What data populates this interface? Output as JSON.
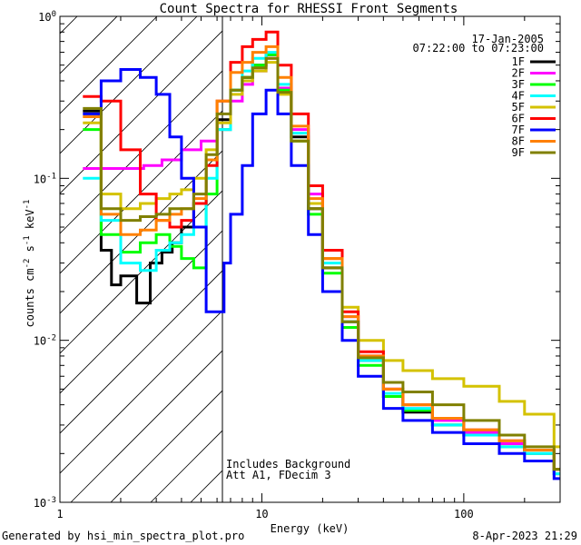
{
  "chart_data": {
    "type": "line",
    "title": "Count Spectra for RHESSI Front Segments",
    "date": "17-Jan-2005",
    "time_range": "07:22:00 to 07:23:00",
    "xlabel": "Energy (keV)",
    "ylabel_main": "counts cm",
    "ylabel_exp1": "-2",
    "ylabel_mid": " s",
    "ylabel_exp2": "-1",
    "ylabel_end": " keV",
    "ylabel_exp3": "-1",
    "x_scale": "log",
    "y_scale": "log",
    "xlim": [
      1.0,
      300
    ],
    "ylim": [
      0.001,
      1.0
    ],
    "x_ticks": [
      {
        "v": 1,
        "label": "1"
      },
      {
        "v": 10,
        "label": "10"
      },
      {
        "v": 100,
        "label": "100"
      }
    ],
    "y_ticks": [
      {
        "v": 1,
        "base": "10",
        "exp": "0"
      },
      {
        "v": 0.1,
        "base": "10",
        "exp": "-1"
      },
      {
        "v": 0.01,
        "base": "10",
        "exp": "-2"
      },
      {
        "v": 0.001,
        "base": "10",
        "exp": "-3"
      }
    ],
    "attenuator_cutoff_kev": 6,
    "annotation_line1": "Includes Background",
    "annotation_line2": "Att A1, FDecim 3",
    "footer_left": "Generated by hsi_min_spectra_plot.pro",
    "footer_right": "8-Apr-2023 21:29",
    "series": [
      {
        "name": "1F",
        "color": "#000000",
        "points": [
          [
            1.3,
            0.26
          ],
          [
            1.6,
            0.036
          ],
          [
            1.8,
            0.022
          ],
          [
            2.0,
            0.025
          ],
          [
            2.4,
            0.017
          ],
          [
            2.8,
            0.03
          ],
          [
            3.2,
            0.035
          ],
          [
            3.6,
            0.04
          ],
          [
            4.0,
            0.05
          ],
          [
            4.6,
            0.07
          ],
          [
            5.3,
            0.13
          ],
          [
            6.0,
            0.23
          ],
          [
            7.0,
            0.35
          ],
          [
            8.0,
            0.42
          ],
          [
            9.0,
            0.5
          ],
          [
            10.5,
            0.58
          ],
          [
            12.0,
            0.36
          ],
          [
            14.0,
            0.18
          ],
          [
            17.0,
            0.065
          ],
          [
            20.0,
            0.028
          ],
          [
            25.0,
            0.013
          ],
          [
            30.0,
            0.0075
          ],
          [
            40.0,
            0.0045
          ],
          [
            50.0,
            0.0036
          ],
          [
            70.0,
            0.003
          ],
          [
            100.0,
            0.0026
          ],
          [
            150.0,
            0.0023
          ],
          [
            200.0,
            0.0021
          ],
          [
            280.0,
            0.0016
          ]
        ]
      },
      {
        "name": "2F",
        "color": "#ff00ff",
        "points": [
          [
            1.3,
            0.115
          ],
          [
            2.0,
            0.115
          ],
          [
            2.6,
            0.12
          ],
          [
            3.2,
            0.13
          ],
          [
            4.0,
            0.15
          ],
          [
            5.0,
            0.17
          ],
          [
            6.0,
            0.2
          ],
          [
            7.0,
            0.3
          ],
          [
            8.0,
            0.38
          ],
          [
            9.0,
            0.46
          ],
          [
            10.5,
            0.55
          ],
          [
            12.0,
            0.36
          ],
          [
            14.0,
            0.2
          ],
          [
            17.0,
            0.08
          ],
          [
            20.0,
            0.032
          ],
          [
            25.0,
            0.014
          ],
          [
            30.0,
            0.008
          ],
          [
            40.0,
            0.005
          ],
          [
            50.0,
            0.004
          ],
          [
            70.0,
            0.0032
          ],
          [
            100.0,
            0.0027
          ],
          [
            150.0,
            0.0023
          ],
          [
            200.0,
            0.002
          ],
          [
            280.0,
            0.0015
          ]
        ]
      },
      {
        "name": "3F",
        "color": "#00ff00",
        "points": [
          [
            1.3,
            0.2
          ],
          [
            1.6,
            0.045
          ],
          [
            2.0,
            0.035
          ],
          [
            2.5,
            0.04
          ],
          [
            3.0,
            0.045
          ],
          [
            3.5,
            0.038
          ],
          [
            4.0,
            0.032
          ],
          [
            4.6,
            0.028
          ],
          [
            5.3,
            0.08
          ],
          [
            6.0,
            0.2
          ],
          [
            7.0,
            0.35
          ],
          [
            8.0,
            0.42
          ],
          [
            9.0,
            0.5
          ],
          [
            10.5,
            0.58
          ],
          [
            12.0,
            0.35
          ],
          [
            14.0,
            0.17
          ],
          [
            17.0,
            0.06
          ],
          [
            20.0,
            0.026
          ],
          [
            25.0,
            0.012
          ],
          [
            30.0,
            0.007
          ],
          [
            40.0,
            0.0045
          ],
          [
            50.0,
            0.0037
          ],
          [
            70.0,
            0.003
          ],
          [
            100.0,
            0.0026
          ],
          [
            150.0,
            0.0022
          ],
          [
            200.0,
            0.002
          ],
          [
            280.0,
            0.0015
          ]
        ]
      },
      {
        "name": "4F",
        "color": "#00ffff",
        "points": [
          [
            1.3,
            0.1
          ],
          [
            1.6,
            0.055
          ],
          [
            2.0,
            0.03
          ],
          [
            2.5,
            0.027
          ],
          [
            3.0,
            0.036
          ],
          [
            3.5,
            0.04
          ],
          [
            4.0,
            0.045
          ],
          [
            4.6,
            0.05
          ],
          [
            5.3,
            0.1
          ],
          [
            6.0,
            0.2
          ],
          [
            7.0,
            0.35
          ],
          [
            8.0,
            0.46
          ],
          [
            9.0,
            0.55
          ],
          [
            10.5,
            0.6
          ],
          [
            12.0,
            0.38
          ],
          [
            14.0,
            0.19
          ],
          [
            17.0,
            0.07
          ],
          [
            20.0,
            0.03
          ],
          [
            25.0,
            0.013
          ],
          [
            30.0,
            0.0075
          ],
          [
            40.0,
            0.0047
          ],
          [
            50.0,
            0.0038
          ],
          [
            70.0,
            0.003
          ],
          [
            100.0,
            0.0026
          ],
          [
            150.0,
            0.0022
          ],
          [
            200.0,
            0.002
          ],
          [
            280.0,
            0.0015
          ]
        ]
      },
      {
        "name": "5F",
        "color": "#d4c200",
        "points": [
          [
            1.3,
            0.22
          ],
          [
            1.6,
            0.08
          ],
          [
            2.0,
            0.065
          ],
          [
            2.5,
            0.07
          ],
          [
            3.0,
            0.075
          ],
          [
            3.5,
            0.08
          ],
          [
            4.0,
            0.085
          ],
          [
            4.6,
            0.1
          ],
          [
            5.3,
            0.15
          ],
          [
            6.0,
            0.22
          ],
          [
            7.0,
            0.33
          ],
          [
            8.0,
            0.4
          ],
          [
            9.0,
            0.46
          ],
          [
            10.5,
            0.52
          ],
          [
            12.0,
            0.33
          ],
          [
            14.0,
            0.17
          ],
          [
            17.0,
            0.07
          ],
          [
            20.0,
            0.032
          ],
          [
            25.0,
            0.016
          ],
          [
            30.0,
            0.01
          ],
          [
            40.0,
            0.0075
          ],
          [
            50.0,
            0.0065
          ],
          [
            70.0,
            0.0058
          ],
          [
            100.0,
            0.0052
          ],
          [
            150.0,
            0.0042
          ],
          [
            200.0,
            0.0035
          ],
          [
            280.0,
            0.0022
          ]
        ]
      },
      {
        "name": "6F",
        "color": "#ff0000",
        "points": [
          [
            1.3,
            0.32
          ],
          [
            1.6,
            0.3
          ],
          [
            2.0,
            0.15
          ],
          [
            2.5,
            0.08
          ],
          [
            3.0,
            0.055
          ],
          [
            3.5,
            0.05
          ],
          [
            4.0,
            0.055
          ],
          [
            4.6,
            0.07
          ],
          [
            5.3,
            0.12
          ],
          [
            6.0,
            0.3
          ],
          [
            7.0,
            0.52
          ],
          [
            8.0,
            0.65
          ],
          [
            9.0,
            0.72
          ],
          [
            10.5,
            0.8
          ],
          [
            12.0,
            0.5
          ],
          [
            14.0,
            0.25
          ],
          [
            17.0,
            0.09
          ],
          [
            20.0,
            0.036
          ],
          [
            25.0,
            0.015
          ],
          [
            30.0,
            0.0085
          ],
          [
            40.0,
            0.005
          ],
          [
            50.0,
            0.004
          ],
          [
            70.0,
            0.0033
          ],
          [
            100.0,
            0.0028
          ],
          [
            150.0,
            0.0024
          ],
          [
            200.0,
            0.0021
          ],
          [
            280.0,
            0.0016
          ]
        ]
      },
      {
        "name": "7F",
        "color": "#0000ff",
        "points": [
          [
            1.3,
            0.25
          ],
          [
            1.6,
            0.4
          ],
          [
            2.0,
            0.47
          ],
          [
            2.5,
            0.42
          ],
          [
            3.0,
            0.33
          ],
          [
            3.5,
            0.18
          ],
          [
            4.0,
            0.1
          ],
          [
            4.6,
            0.05
          ],
          [
            5.3,
            0.015
          ],
          [
            6.0,
            0.015
          ],
          [
            6.5,
            0.03
          ],
          [
            7.0,
            0.06
          ],
          [
            8.0,
            0.12
          ],
          [
            9.0,
            0.25
          ],
          [
            10.5,
            0.35
          ],
          [
            12.0,
            0.25
          ],
          [
            14.0,
            0.12
          ],
          [
            17.0,
            0.045
          ],
          [
            20.0,
            0.02
          ],
          [
            25.0,
            0.01
          ],
          [
            30.0,
            0.006
          ],
          [
            40.0,
            0.0038
          ],
          [
            50.0,
            0.0032
          ],
          [
            70.0,
            0.0027
          ],
          [
            100.0,
            0.0023
          ],
          [
            150.0,
            0.002
          ],
          [
            200.0,
            0.0018
          ],
          [
            280.0,
            0.0014
          ]
        ]
      },
      {
        "name": "8F",
        "color": "#ff8000",
        "points": [
          [
            1.3,
            0.24
          ],
          [
            1.6,
            0.06
          ],
          [
            2.0,
            0.045
          ],
          [
            2.5,
            0.048
          ],
          [
            3.0,
            0.055
          ],
          [
            3.5,
            0.06
          ],
          [
            4.0,
            0.065
          ],
          [
            4.6,
            0.075
          ],
          [
            5.3,
            0.13
          ],
          [
            6.0,
            0.3
          ],
          [
            7.0,
            0.45
          ],
          [
            8.0,
            0.52
          ],
          [
            9.0,
            0.6
          ],
          [
            10.5,
            0.65
          ],
          [
            12.0,
            0.42
          ],
          [
            14.0,
            0.21
          ],
          [
            17.0,
            0.075
          ],
          [
            20.0,
            0.032
          ],
          [
            25.0,
            0.014
          ],
          [
            30.0,
            0.008
          ],
          [
            40.0,
            0.005
          ],
          [
            50.0,
            0.004
          ],
          [
            70.0,
            0.0033
          ],
          [
            100.0,
            0.0028
          ],
          [
            150.0,
            0.0024
          ],
          [
            200.0,
            0.0021
          ],
          [
            280.0,
            0.0016
          ]
        ]
      },
      {
        "name": "9F",
        "color": "#808000",
        "points": [
          [
            1.3,
            0.27
          ],
          [
            1.6,
            0.065
          ],
          [
            2.0,
            0.055
          ],
          [
            2.5,
            0.058
          ],
          [
            3.0,
            0.06
          ],
          [
            3.5,
            0.065
          ],
          [
            4.0,
            0.065
          ],
          [
            4.6,
            0.08
          ],
          [
            5.3,
            0.14
          ],
          [
            6.0,
            0.25
          ],
          [
            7.0,
            0.35
          ],
          [
            8.0,
            0.42
          ],
          [
            9.0,
            0.48
          ],
          [
            10.5,
            0.55
          ],
          [
            12.0,
            0.34
          ],
          [
            14.0,
            0.17
          ],
          [
            17.0,
            0.065
          ],
          [
            20.0,
            0.028
          ],
          [
            25.0,
            0.013
          ],
          [
            30.0,
            0.0078
          ],
          [
            40.0,
            0.0055
          ],
          [
            50.0,
            0.0048
          ],
          [
            70.0,
            0.004
          ],
          [
            100.0,
            0.0032
          ],
          [
            150.0,
            0.0026
          ],
          [
            200.0,
            0.0022
          ],
          [
            280.0,
            0.0016
          ]
        ]
      }
    ]
  }
}
